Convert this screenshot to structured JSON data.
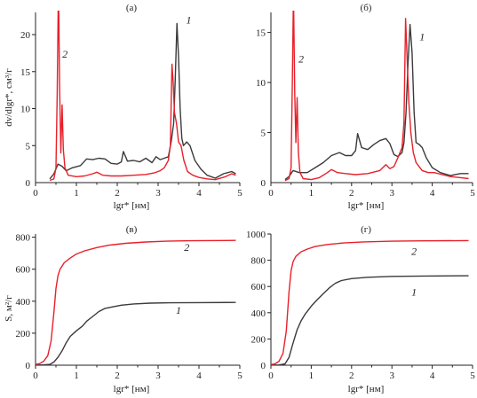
{
  "colors": {
    "series1": "#3a3a3a",
    "series2": "#e8202a",
    "axis": "#222222"
  },
  "chart_data": [
    {
      "panel": "a",
      "title": "(а)",
      "type": "line",
      "ylabel": "dv/dlgr*, см³/г",
      "xlabel": "lgr* [нм]",
      "xlim": [
        0,
        5
      ],
      "ylim": [
        0,
        23
      ],
      "xticks": [
        0,
        1,
        2,
        3,
        4,
        5
      ],
      "yticks": [
        5,
        10,
        15,
        20
      ],
      "curve_labels": [
        {
          "text": "1",
          "x": 3.75,
          "y": 21.5
        },
        {
          "text": "2",
          "x": 0.72,
          "y": 16.9
        }
      ],
      "series": [
        {
          "name": "1",
          "color": "#3a3a3a",
          "points": [
            [
              0.35,
              0.5
            ],
            [
              0.45,
              1.2
            ],
            [
              0.55,
              2.5
            ],
            [
              0.65,
              2.2
            ],
            [
              0.75,
              1.6
            ],
            [
              0.9,
              2.0
            ],
            [
              1.1,
              2.3
            ],
            [
              1.25,
              3.2
            ],
            [
              1.4,
              3.1
            ],
            [
              1.55,
              3.3
            ],
            [
              1.7,
              3.2
            ],
            [
              1.85,
              2.6
            ],
            [
              2.0,
              2.5
            ],
            [
              2.1,
              2.8
            ],
            [
              2.15,
              4.2
            ],
            [
              2.25,
              2.9
            ],
            [
              2.4,
              3.0
            ],
            [
              2.55,
              2.8
            ],
            [
              2.7,
              3.3
            ],
            [
              2.85,
              2.7
            ],
            [
              2.95,
              3.5
            ],
            [
              3.05,
              3.1
            ],
            [
              3.15,
              3.3
            ],
            [
              3.25,
              3.5
            ],
            [
              3.32,
              5.5
            ],
            [
              3.38,
              8.0
            ],
            [
              3.42,
              14.0
            ],
            [
              3.46,
              21.5
            ],
            [
              3.5,
              17.0
            ],
            [
              3.54,
              10.0
            ],
            [
              3.58,
              6.0
            ],
            [
              3.62,
              5.0
            ],
            [
              3.7,
              5.5
            ],
            [
              3.78,
              5.0
            ],
            [
              3.9,
              3.0
            ],
            [
              4.05,
              1.8
            ],
            [
              4.2,
              1.0
            ],
            [
              4.4,
              0.6
            ],
            [
              4.6,
              1.2
            ],
            [
              4.8,
              1.5
            ],
            [
              4.9,
              1.2
            ]
          ]
        },
        {
          "name": "2",
          "color": "#e8202a",
          "points": [
            [
              0.35,
              0.3
            ],
            [
              0.45,
              0.5
            ],
            [
              0.5,
              2.0
            ],
            [
              0.53,
              12.0
            ],
            [
              0.56,
              27.0
            ],
            [
              0.59,
              13.0
            ],
            [
              0.62,
              4.0
            ],
            [
              0.65,
              10.5
            ],
            [
              0.68,
              4.5
            ],
            [
              0.72,
              2.0
            ],
            [
              0.8,
              1.0
            ],
            [
              1.0,
              0.8
            ],
            [
              1.2,
              0.9
            ],
            [
              1.4,
              1.2
            ],
            [
              1.5,
              1.4
            ],
            [
              1.65,
              1.0
            ],
            [
              1.85,
              0.9
            ],
            [
              2.1,
              0.9
            ],
            [
              2.4,
              1.0
            ],
            [
              2.7,
              1.1
            ],
            [
              2.9,
              1.3
            ],
            [
              3.05,
              1.6
            ],
            [
              3.15,
              2.0
            ],
            [
              3.25,
              3.0
            ],
            [
              3.3,
              5.0
            ],
            [
              3.34,
              16.0
            ],
            [
              3.37,
              13.5
            ],
            [
              3.4,
              9.5
            ],
            [
              3.45,
              8.0
            ],
            [
              3.5,
              5.5
            ],
            [
              3.56,
              5.0
            ],
            [
              3.63,
              3.0
            ],
            [
              3.72,
              1.5
            ],
            [
              3.85,
              1.0
            ],
            [
              4.0,
              0.7
            ],
            [
              4.2,
              0.5
            ],
            [
              4.4,
              0.4
            ],
            [
              4.65,
              0.8
            ],
            [
              4.8,
              1.2
            ],
            [
              4.9,
              1.0
            ]
          ]
        }
      ]
    },
    {
      "panel": "b",
      "title": "(б)",
      "type": "line",
      "ylabel": "",
      "xlabel": "lgr* [нм]",
      "xlim": [
        0,
        5
      ],
      "ylim": [
        0,
        17
      ],
      "xticks": [
        0,
        1,
        2,
        3,
        4,
        5
      ],
      "yticks": [
        5,
        10,
        15
      ],
      "curve_labels": [
        {
          "text": "1",
          "x": 3.75,
          "y": 14.2
        },
        {
          "text": "2",
          "x": 0.75,
          "y": 12.0
        }
      ],
      "series": [
        {
          "name": "1",
          "color": "#3a3a3a",
          "points": [
            [
              0.35,
              0.3
            ],
            [
              0.45,
              0.6
            ],
            [
              0.55,
              1.2
            ],
            [
              0.7,
              1.0
            ],
            [
              0.9,
              1.0
            ],
            [
              1.1,
              1.5
            ],
            [
              1.3,
              2.0
            ],
            [
              1.5,
              2.7
            ],
            [
              1.7,
              3.0
            ],
            [
              1.85,
              2.7
            ],
            [
              2.0,
              2.7
            ],
            [
              2.1,
              3.2
            ],
            [
              2.15,
              4.9
            ],
            [
              2.25,
              3.5
            ],
            [
              2.4,
              3.3
            ],
            [
              2.55,
              3.8
            ],
            [
              2.7,
              4.2
            ],
            [
              2.85,
              4.4
            ],
            [
              2.95,
              3.9
            ],
            [
              3.05,
              2.8
            ],
            [
              3.15,
              2.6
            ],
            [
              3.25,
              3.0
            ],
            [
              3.3,
              4.0
            ],
            [
              3.35,
              7.0
            ],
            [
              3.4,
              12.0
            ],
            [
              3.45,
              15.8
            ],
            [
              3.5,
              13.0
            ],
            [
              3.55,
              7.0
            ],
            [
              3.6,
              4.0
            ],
            [
              3.68,
              3.8
            ],
            [
              3.75,
              3.5
            ],
            [
              3.85,
              2.5
            ],
            [
              4.0,
              1.5
            ],
            [
              4.2,
              1.0
            ],
            [
              4.45,
              0.7
            ],
            [
              4.7,
              0.9
            ],
            [
              4.9,
              0.9
            ]
          ]
        },
        {
          "name": "2",
          "color": "#e8202a",
          "points": [
            [
              0.35,
              0.2
            ],
            [
              0.45,
              0.4
            ],
            [
              0.5,
              1.5
            ],
            [
              0.53,
              10.0
            ],
            [
              0.56,
              19.0
            ],
            [
              0.59,
              9.0
            ],
            [
              0.62,
              4.0
            ],
            [
              0.65,
              8.5
            ],
            [
              0.68,
              3.0
            ],
            [
              0.72,
              1.0
            ],
            [
              0.8,
              0.4
            ],
            [
              1.0,
              0.3
            ],
            [
              1.2,
              0.5
            ],
            [
              1.4,
              1.0
            ],
            [
              1.5,
              1.3
            ],
            [
              1.65,
              1.0
            ],
            [
              1.85,
              0.9
            ],
            [
              2.1,
              0.8
            ],
            [
              2.4,
              0.9
            ],
            [
              2.7,
              1.2
            ],
            [
              2.85,
              1.8
            ],
            [
              2.95,
              1.4
            ],
            [
              3.05,
              1.6
            ],
            [
              3.15,
              2.5
            ],
            [
              3.25,
              3.5
            ],
            [
              3.3,
              6.0
            ],
            [
              3.34,
              16.4
            ],
            [
              3.38,
              12.0
            ],
            [
              3.42,
              8.0
            ],
            [
              3.47,
              5.0
            ],
            [
              3.53,
              3.0
            ],
            [
              3.6,
              2.0
            ],
            [
              3.75,
              1.2
            ],
            [
              3.9,
              1.0
            ],
            [
              4.05,
              1.0
            ],
            [
              4.25,
              0.8
            ],
            [
              4.45,
              0.6
            ],
            [
              4.7,
              0.5
            ],
            [
              4.9,
              0.4
            ]
          ]
        }
      ]
    },
    {
      "panel": "c",
      "title": "(в)",
      "type": "line",
      "ylabel": "S, м²/г",
      "xlabel": "lgr* [нм]",
      "xlim": [
        0,
        5
      ],
      "ylim": [
        0,
        820
      ],
      "xticks": [
        0,
        1,
        2,
        3,
        4,
        5
      ],
      "yticks": [
        200,
        400,
        600,
        800
      ],
      "curve_labels": [
        {
          "text": "2",
          "x": 3.7,
          "y": 715
        },
        {
          "text": "1",
          "x": 3.5,
          "y": 320
        }
      ],
      "series": [
        {
          "name": "1",
          "color": "#3a3a3a",
          "points": [
            [
              0.0,
              0
            ],
            [
              0.2,
              2
            ],
            [
              0.35,
              5
            ],
            [
              0.45,
              20
            ],
            [
              0.55,
              50
            ],
            [
              0.65,
              90
            ],
            [
              0.75,
              140
            ],
            [
              0.85,
              180
            ],
            [
              1.0,
              215
            ],
            [
              1.15,
              245
            ],
            [
              1.25,
              275
            ],
            [
              1.4,
              305
            ],
            [
              1.55,
              335
            ],
            [
              1.7,
              355
            ],
            [
              1.9,
              365
            ],
            [
              2.1,
              375
            ],
            [
              2.4,
              383
            ],
            [
              2.8,
              388
            ],
            [
              3.3,
              390
            ],
            [
              4.0,
              391
            ],
            [
              4.9,
              392
            ]
          ]
        },
        {
          "name": "2",
          "color": "#e8202a",
          "points": [
            [
              0.0,
              5
            ],
            [
              0.1,
              10
            ],
            [
              0.2,
              25
            ],
            [
              0.3,
              60
            ],
            [
              0.38,
              150
            ],
            [
              0.45,
              330
            ],
            [
              0.5,
              480
            ],
            [
              0.55,
              560
            ],
            [
              0.6,
              600
            ],
            [
              0.7,
              640
            ],
            [
              0.85,
              670
            ],
            [
              1.0,
              695
            ],
            [
              1.2,
              715
            ],
            [
              1.5,
              735
            ],
            [
              1.8,
              750
            ],
            [
              2.2,
              762
            ],
            [
              2.7,
              770
            ],
            [
              3.2,
              775
            ],
            [
              3.8,
              778
            ],
            [
              4.9,
              780
            ]
          ]
        }
      ]
    },
    {
      "panel": "d",
      "title": "(г)",
      "type": "line",
      "ylabel": "",
      "xlabel": "lgr* [нм]",
      "xlim": [
        0,
        5
      ],
      "ylim": [
        0,
        1000
      ],
      "xticks": [
        0,
        1,
        2,
        3,
        4,
        5
      ],
      "yticks": [
        200,
        400,
        600,
        800,
        1000
      ],
      "curve_labels": [
        {
          "text": "2",
          "x": 3.55,
          "y": 840
        },
        {
          "text": "1",
          "x": 3.55,
          "y": 530
        }
      ],
      "series": [
        {
          "name": "1",
          "color": "#3a3a3a",
          "points": [
            [
              0.0,
              0
            ],
            [
              0.2,
              2
            ],
            [
              0.35,
              10
            ],
            [
              0.45,
              60
            ],
            [
              0.55,
              170
            ],
            [
              0.65,
              270
            ],
            [
              0.75,
              340
            ],
            [
              0.85,
              390
            ],
            [
              1.0,
              450
            ],
            [
              1.15,
              500
            ],
            [
              1.3,
              545
            ],
            [
              1.45,
              590
            ],
            [
              1.6,
              625
            ],
            [
              1.75,
              645
            ],
            [
              2.0,
              660
            ],
            [
              2.4,
              670
            ],
            [
              3.0,
              677
            ],
            [
              3.8,
              680
            ],
            [
              4.9,
              682
            ]
          ]
        },
        {
          "name": "2",
          "color": "#e8202a",
          "points": [
            [
              0.0,
              5
            ],
            [
              0.1,
              10
            ],
            [
              0.2,
              30
            ],
            [
              0.3,
              90
            ],
            [
              0.38,
              260
            ],
            [
              0.45,
              560
            ],
            [
              0.5,
              720
            ],
            [
              0.55,
              790
            ],
            [
              0.62,
              830
            ],
            [
              0.75,
              865
            ],
            [
              0.9,
              885
            ],
            [
              1.1,
              905
            ],
            [
              1.4,
              920
            ],
            [
              1.8,
              932
            ],
            [
              2.3,
              940
            ],
            [
              3.0,
              945
            ],
            [
              3.8,
              948
            ],
            [
              4.9,
              950
            ]
          ]
        }
      ]
    }
  ]
}
